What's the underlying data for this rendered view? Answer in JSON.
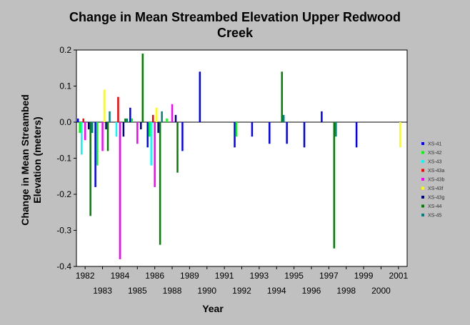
{
  "chart_data": {
    "type": "bar",
    "title_line1": "Change in Mean Streambed Elevation Upper Redwood",
    "title_line2": "Creek",
    "xlabel": "Year",
    "ylabel_line1": "Change in Mean Streambed",
    "ylabel_line2": "Elevation (meters)",
    "ylim": [
      -0.4,
      0.2
    ],
    "yticks": [
      "0.2",
      "0.1",
      "0.0",
      "-0.1",
      "-0.2",
      "-0.3",
      "-0.4"
    ],
    "grid": false,
    "legend_placement": "right",
    "categories": [
      "1982",
      "1983",
      "1984",
      "1985",
      "1986",
      "1988",
      "1989",
      "1990",
      "1991",
      "1992",
      "1993",
      "1994",
      "1995",
      "1996",
      "1997",
      "1998",
      "1999",
      "2000",
      "2001"
    ],
    "x_tick_labels_row1": [
      "1982",
      "1984",
      "1986",
      "1989",
      "1991",
      "1993",
      "1995",
      "1997",
      "1999",
      "2001"
    ],
    "x_tick_labels_row2": [
      "1983",
      "1985",
      "1988",
      "1990",
      "1992",
      "1994",
      "1996",
      "1998",
      "2000"
    ],
    "series": [
      {
        "name": "XS-41",
        "color": "#0000ff",
        "values": [
          0.01,
          -0.18,
          null,
          0.04,
          -0.07,
          null,
          -0.08,
          0.14,
          null,
          -0.07,
          -0.04,
          -0.06,
          -0.06,
          -0.07,
          0.03,
          null,
          -0.07,
          null,
          null
        ]
      },
      {
        "name": "XS-42",
        "color": "#00ff00",
        "values": [
          -0.03,
          -0.12,
          null,
          0.01,
          -0.04,
          0.01,
          null,
          null,
          null,
          -0.04,
          null,
          null,
          null,
          null,
          null,
          null,
          null,
          null,
          null
        ]
      },
      {
        "name": "XS-43",
        "color": "#00ffff",
        "values": [
          -0.09,
          null,
          -0.04,
          null,
          -0.12,
          null,
          null,
          null,
          null,
          null,
          null,
          null,
          null,
          null,
          null,
          null,
          null,
          null,
          null
        ]
      },
      {
        "name": "XS-43a",
        "color": "#ff0000",
        "values": [
          0.01,
          null,
          0.07,
          null,
          0.02,
          null,
          null,
          null,
          null,
          null,
          null,
          null,
          null,
          null,
          null,
          null,
          null,
          null,
          null
        ]
      },
      {
        "name": "XS-43b",
        "color": "#ff00ff",
        "values": [
          -0.05,
          -0.08,
          -0.38,
          -0.06,
          -0.18,
          0.05,
          null,
          null,
          null,
          null,
          null,
          null,
          null,
          null,
          null,
          null,
          null,
          null,
          null
        ]
      },
      {
        "name": "XS-43f",
        "color": "#ffff00",
        "values": [
          null,
          0.09,
          null,
          null,
          0.04,
          null,
          null,
          null,
          null,
          null,
          null,
          null,
          null,
          null,
          null,
          null,
          null,
          null,
          -0.07
        ]
      },
      {
        "name": "XS-43g",
        "color": "#000080",
        "values": [
          -0.02,
          -0.02,
          -0.04,
          -0.02,
          -0.03,
          0.02,
          null,
          null,
          null,
          null,
          null,
          null,
          null,
          null,
          null,
          null,
          null,
          null,
          null
        ]
      },
      {
        "name": "XS-44",
        "color": "#008000",
        "values": [
          -0.26,
          -0.08,
          0.01,
          0.19,
          -0.34,
          -0.14,
          null,
          null,
          null,
          null,
          null,
          0.14,
          null,
          null,
          -0.35,
          null,
          null,
          null,
          null
        ]
      },
      {
        "name": "XS-45",
        "color": "#008080",
        "values": [
          -0.03,
          0.03,
          0.01,
          null,
          0.03,
          null,
          null,
          null,
          null,
          null,
          null,
          0.02,
          null,
          null,
          -0.04,
          null,
          null,
          null,
          null
        ]
      }
    ]
  }
}
